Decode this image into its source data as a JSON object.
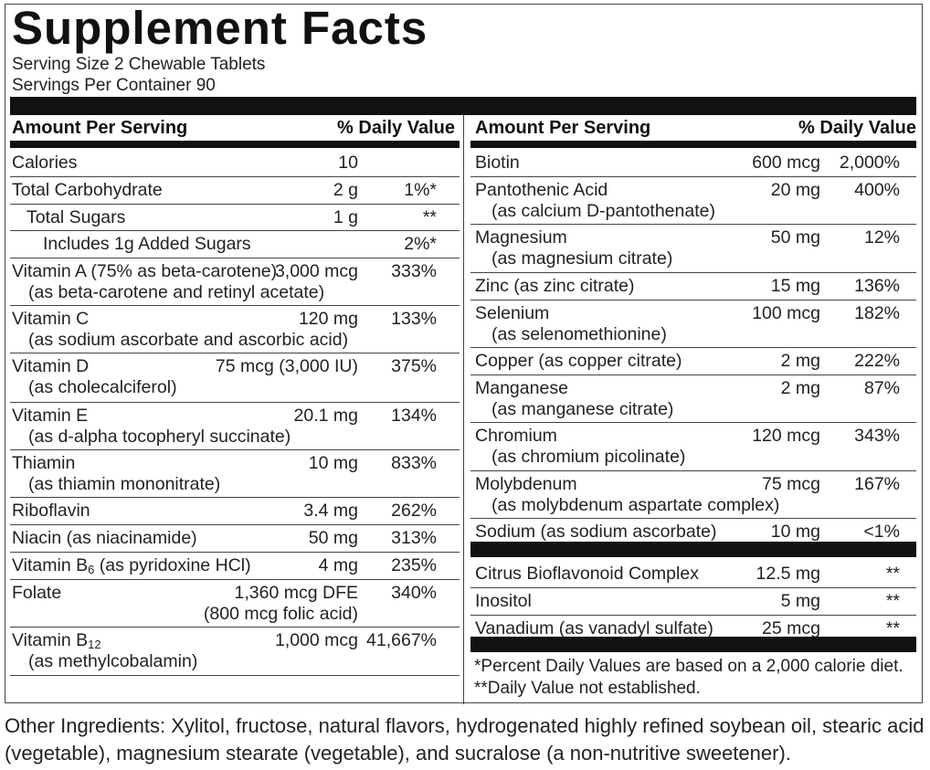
{
  "title": "Supplement  Facts",
  "serving_size": "Serving Size 2 Chewable Tablets",
  "servings_per_container": "Servings Per Container 90",
  "header": {
    "amount_label": "Amount Per Serving",
    "dv_label": "% Daily Value"
  },
  "left_rows": [
    {
      "name": "Calories",
      "sub": "",
      "amount": "10",
      "dv": ""
    },
    {
      "name": "Total Carbohydrate",
      "sub": "",
      "amount": "2 g",
      "dv": "1%*"
    },
    {
      "name": "Total Sugars",
      "sub": "",
      "amount": "1 g",
      "dv": "**"
    },
    {
      "name": "Includes 1g Added Sugars",
      "sub": "",
      "amount": "",
      "dv": "2%*"
    },
    {
      "name": "Vitamin A (75% as beta-carotene)",
      "sub": "(as beta-carotene and retinyl acetate)",
      "amount": "3,000 mcg",
      "dv": "333%"
    },
    {
      "name": "Vitamin C",
      "sub": "(as sodium ascorbate and ascorbic acid)",
      "amount": "120 mg",
      "dv": "133%"
    },
    {
      "name": "Vitamin D",
      "sub": "(as cholecalciferol)",
      "amount": "75 mcg (3,000 IU)",
      "dv": "375%"
    },
    {
      "name": "Vitamin E",
      "sub": "(as d-alpha tocopheryl succinate)",
      "amount": "20.1 mg",
      "dv": "134%"
    },
    {
      "name": "Thiamin",
      "sub": "(as thiamin mononitrate)",
      "amount": "10 mg",
      "dv": "833%"
    },
    {
      "name": "Riboflavin",
      "sub": "",
      "amount": "3.4 mg",
      "dv": "262%"
    },
    {
      "name": "Niacin (as niacinamide)",
      "sub": "",
      "amount": "50 mg",
      "dv": "313%"
    },
    {
      "name_prefix": "Vitamin B",
      "name_subscript": "6",
      "name_suffix": " (as pyridoxine HCl)",
      "sub": "",
      "amount": "4 mg",
      "dv": "235%"
    },
    {
      "name": "Folate",
      "sub": "(800 mcg folic acid)",
      "amount": "1,360 mcg DFE",
      "dv": "340%"
    },
    {
      "name_prefix": "Vitamin B",
      "name_subscript": "12",
      "name_suffix": "",
      "sub": "(as methylcobalamin)",
      "amount": "1,000 mcg",
      "dv": "41,667%"
    }
  ],
  "right_rows": [
    {
      "name": "Biotin",
      "sub": "",
      "amount": "600 mcg",
      "dv": "2,000%"
    },
    {
      "name": "Pantothenic Acid",
      "sub": "(as calcium D-pantothenate)",
      "amount": "20 mg",
      "dv": "400%"
    },
    {
      "name": "Magnesium",
      "sub": "(as magnesium citrate)",
      "amount": "50 mg",
      "dv": "12%"
    },
    {
      "name": "Zinc (as zinc citrate)",
      "sub": "",
      "amount": "15 mg",
      "dv": "136%"
    },
    {
      "name": "Selenium",
      "sub": "(as selenomethionine)",
      "amount": "100 mcg",
      "dv": "182%"
    },
    {
      "name": "Copper (as copper citrate)",
      "sub": "",
      "amount": "2 mg",
      "dv": "222%"
    },
    {
      "name": "Manganese",
      "sub": "(as manganese citrate)",
      "amount": "2 mg",
      "dv": "87%"
    },
    {
      "name": "Chromium",
      "sub": "(as chromium picolinate)",
      "amount": "120 mcg",
      "dv": "343%"
    },
    {
      "name": "Molybdenum",
      "sub": "(as molybdenum aspartate complex)",
      "amount": "75 mcg",
      "dv": "167%"
    },
    {
      "name": "Sodium (as sodium ascorbate)",
      "sub": "",
      "amount": "10 mg",
      "dv": "<1%"
    },
    {
      "name": "Citrus Bioflavonoid Complex",
      "sub": "",
      "amount": "12.5 mg",
      "dv": "**"
    },
    {
      "name": "Inositol",
      "sub": "",
      "amount": "5 mg",
      "dv": "**"
    },
    {
      "name": "Vanadium (as vanadyl sulfate)",
      "sub": "",
      "amount": "25 mcg",
      "dv": "**"
    }
  ],
  "footnotes": [
    " *Percent Daily Values are based on a 2,000 calorie diet.",
    "**Daily Value not established."
  ],
  "other_ingredients": [
    "Other Ingredients: Xylitol, fructose, natural flavors, hydrogenated highly refined soybean oil, stearic acid",
    "(vegetable), magnesium stearate (vegetable), and sucralose (a non-nutritive sweetener)."
  ]
}
